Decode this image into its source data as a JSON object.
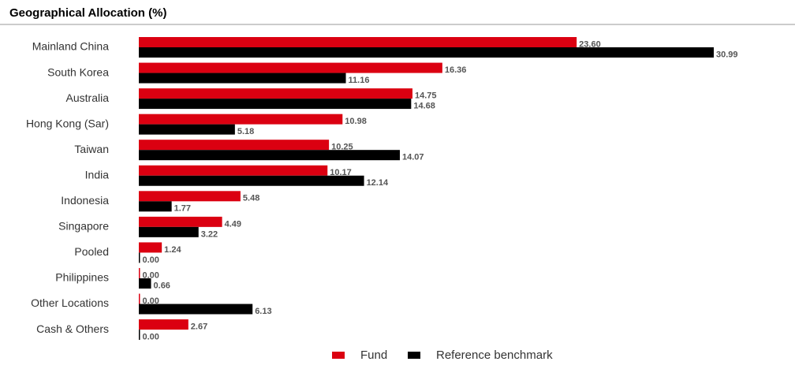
{
  "chart_data": {
    "type": "bar",
    "orientation": "horizontal",
    "title": "Geographical Allocation (%)",
    "categories": [
      "Mainland China",
      "South Korea",
      "Australia",
      "Hong Kong (Sar)",
      "Taiwan",
      "India",
      "Indonesia",
      "Singapore",
      "Pooled",
      "Philippines",
      "Other Locations",
      "Cash & Others"
    ],
    "series": [
      {
        "name": "Fund",
        "color": "#db0011",
        "values": [
          23.6,
          16.36,
          14.75,
          10.98,
          10.25,
          10.17,
          5.48,
          4.49,
          1.24,
          0,
          0,
          2.67
        ],
        "value_labels": [
          "23.60",
          "16.36",
          "14.75",
          "10.98",
          "10.25",
          "10.17",
          "5.48",
          "4.49",
          "1.24",
          "0.00",
          "0.00",
          "2.67"
        ]
      },
      {
        "name": "Reference benchmark",
        "color": "#000000",
        "values": [
          30.99,
          11.16,
          14.68,
          5.18,
          14.07,
          12.14,
          1.77,
          3.22,
          0,
          0.66,
          6.13,
          0
        ],
        "value_labels": [
          "30.99",
          "11.16",
          "14.68",
          "5.18",
          "14.07",
          "12.14",
          "1.77",
          "3.22",
          "0.00",
          "0.66",
          "6.13",
          "0.00"
        ]
      }
    ],
    "legend": "bottom"
  }
}
